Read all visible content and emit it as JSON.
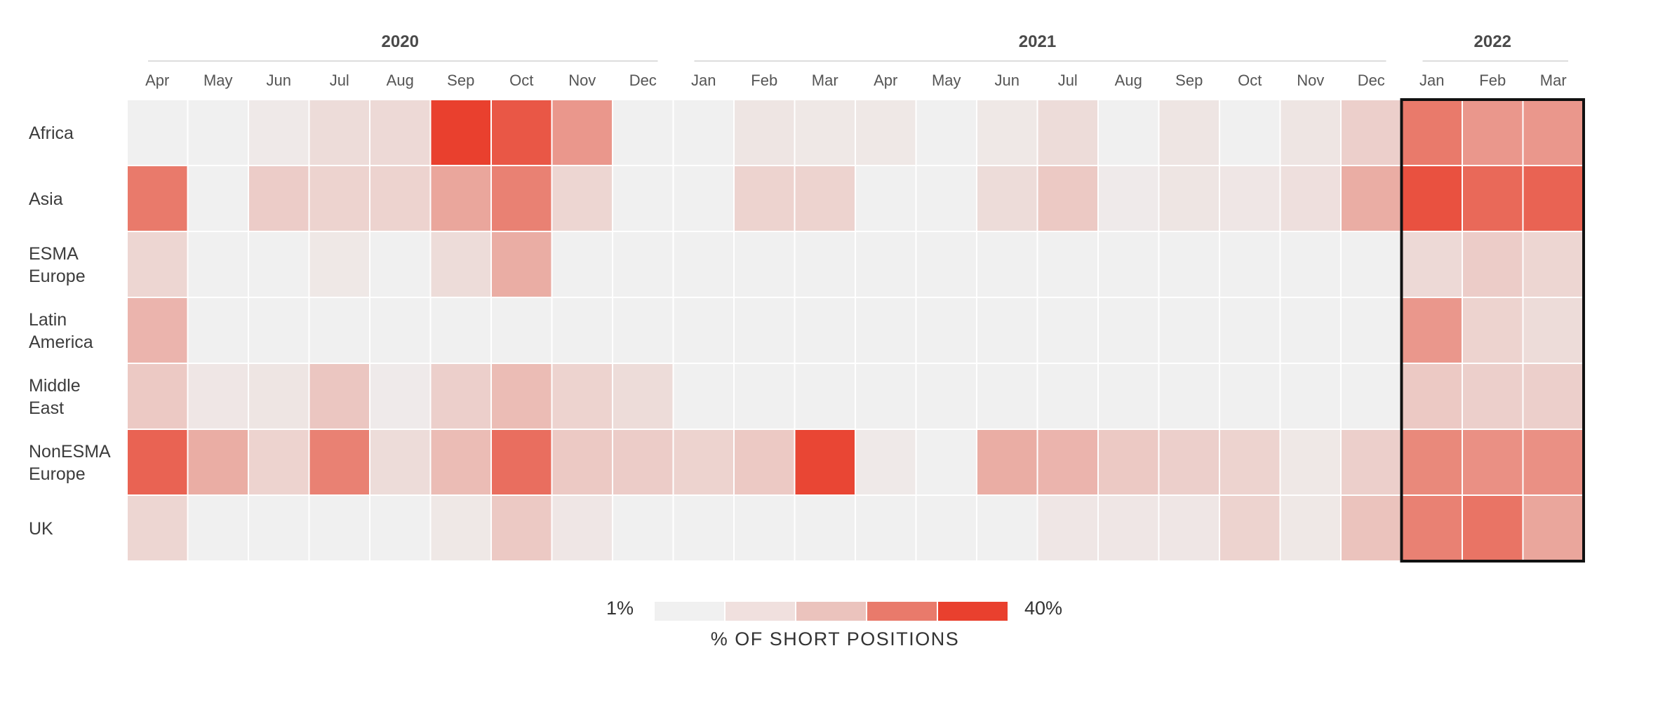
{
  "chart_data": {
    "type": "heatmap",
    "value_unit": "level (1 = lowest bin, 5 = highest bin)",
    "year_groups": [
      {
        "label": "2020",
        "start": 0,
        "end": 8
      },
      {
        "label": "2021",
        "start": 9,
        "end": 20
      },
      {
        "label": "2022",
        "start": 21,
        "end": 23
      }
    ],
    "months": [
      "Apr",
      "May",
      "Jun",
      "Jul",
      "Aug",
      "Sep",
      "Oct",
      "Nov",
      "Dec",
      "Jan",
      "Feb",
      "Mar",
      "Apr",
      "May",
      "Jun",
      "Jul",
      "Aug",
      "Sep",
      "Oct",
      "Nov",
      "Dec",
      "Jan",
      "Feb",
      "Mar"
    ],
    "highlight": {
      "start": 21,
      "end": 23
    },
    "rows": [
      {
        "label": [
          "Africa"
        ],
        "values": [
          1.0,
          1.0,
          1.5,
          2.2,
          2.3,
          5.0,
          4.6,
          3.6,
          1.0,
          1.0,
          1.8,
          1.6,
          1.6,
          1.0,
          1.6,
          2.2,
          1.0,
          1.8,
          1.0,
          1.8,
          2.6,
          4.0,
          3.6,
          3.6
        ]
      },
      {
        "label": [
          "Asia"
        ],
        "values": [
          4.0,
          1.0,
          2.7,
          2.5,
          2.5,
          3.4,
          3.9,
          2.4,
          1.0,
          1.0,
          2.5,
          2.5,
          1.0,
          1.0,
          2.2,
          2.8,
          1.4,
          1.8,
          1.7,
          2.1,
          3.3,
          4.7,
          4.3,
          4.4
        ]
      },
      {
        "label": [
          "ESMA",
          "Europe"
        ],
        "values": [
          2.4,
          1.0,
          1.0,
          1.6,
          1.0,
          2.2,
          3.3,
          1.0,
          1.0,
          1.0,
          1.0,
          1.0,
          1.0,
          1.0,
          1.0,
          1.0,
          1.0,
          1.0,
          1.0,
          1.0,
          1.0,
          2.3,
          2.7,
          2.4
        ]
      },
      {
        "label": [
          "Latin",
          "America"
        ],
        "values": [
          3.2,
          1.0,
          1.0,
          1.0,
          1.0,
          1.0,
          1.0,
          1.0,
          1.0,
          1.0,
          1.0,
          1.0,
          1.0,
          1.0,
          1.0,
          1.0,
          1.0,
          1.0,
          1.0,
          1.0,
          1.0,
          3.6,
          2.5,
          2.2
        ]
      },
      {
        "label": [
          "Middle",
          "East"
        ],
        "values": [
          2.8,
          1.7,
          1.8,
          2.9,
          1.4,
          2.6,
          3.1,
          2.5,
          2.2,
          1.0,
          1.0,
          1.0,
          1.0,
          1.0,
          1.0,
          1.0,
          1.0,
          1.0,
          1.0,
          1.0,
          1.0,
          2.8,
          2.6,
          2.6
        ]
      },
      {
        "label": [
          "NonESMA",
          "Europe"
        ],
        "values": [
          4.4,
          3.3,
          2.5,
          3.9,
          2.2,
          3.1,
          4.2,
          2.8,
          2.7,
          2.5,
          2.8,
          4.9,
          1.5,
          1.0,
          3.3,
          3.2,
          2.8,
          2.6,
          2.5,
          1.6,
          2.6,
          3.8,
          3.7,
          3.7
        ]
      },
      {
        "label": [
          "UK"
        ],
        "values": [
          2.4,
          1.0,
          1.0,
          1.0,
          1.0,
          1.6,
          2.8,
          1.7,
          1.0,
          1.0,
          1.0,
          1.0,
          1.0,
          1.0,
          1.0,
          1.7,
          1.7,
          1.7,
          2.5,
          1.6,
          3.0,
          3.9,
          4.1,
          3.4
        ]
      }
    ],
    "legend": {
      "min_label": "1%",
      "max_label": "40%",
      "title": "% OF SHORT POSITIONS",
      "colors": [
        "#f0f0f0",
        "#f0e0de",
        "#ebc3bd",
        "#e97a6b",
        "#e9402e"
      ]
    },
    "color_scale": [
      "#f0f0f0",
      "#eee2e0",
      "#ebc3bd",
      "#e97a6b",
      "#e9402e"
    ],
    "highlight_color": "#111111"
  }
}
